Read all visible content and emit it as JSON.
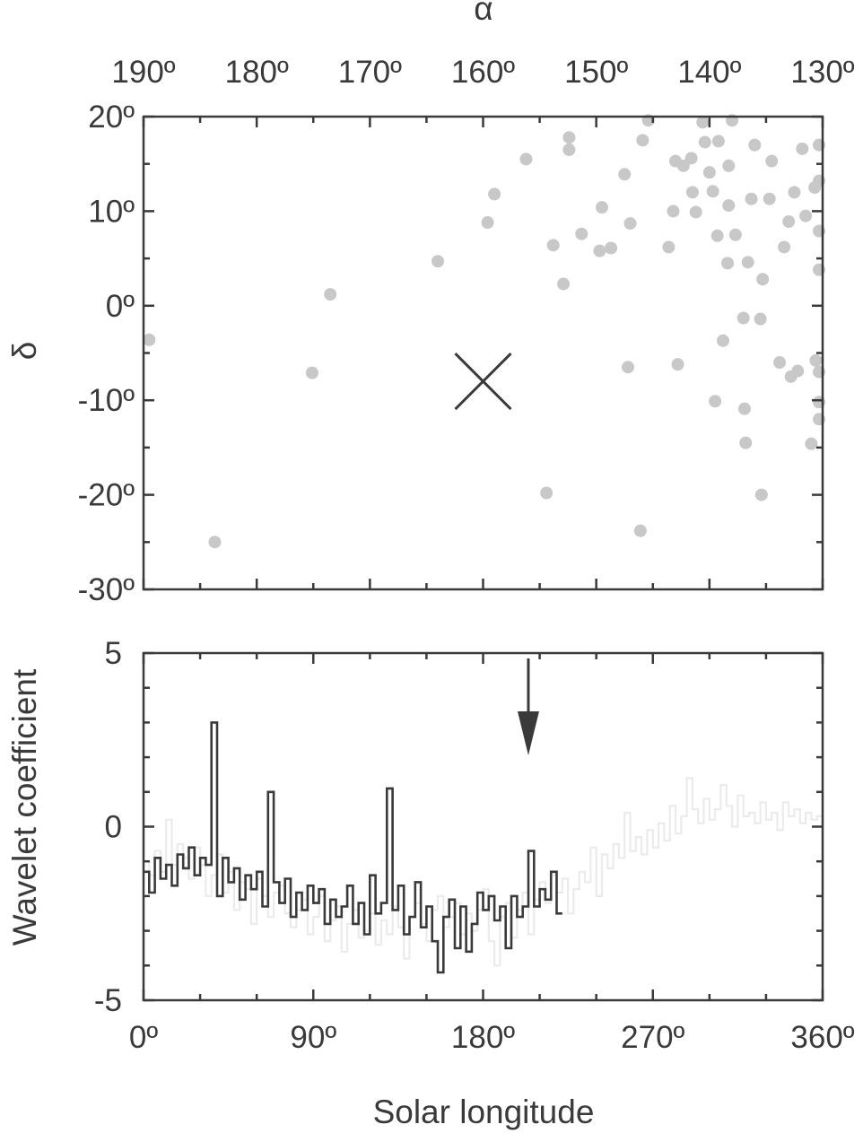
{
  "chart_data": [
    {
      "type": "scatter",
      "xlabel": "α",
      "ylabel": "δ",
      "xlim": [
        190,
        130
      ],
      "ylim": [
        -30,
        20
      ],
      "x_ticks": [
        "190º",
        "180º",
        "170º",
        "160º",
        "150º",
        "140º",
        "130º"
      ],
      "y_ticks": [
        "20º",
        "10º",
        "0º",
        "-10º",
        "-20º",
        "-30º"
      ],
      "grid": false,
      "radiant_marker": {
        "alpha": 160,
        "delta": -8
      },
      "points": [
        [
          189.5,
          -3.6
        ],
        [
          183.7,
          -25
        ],
        [
          175.1,
          -7.1
        ],
        [
          173.5,
          1.2
        ],
        [
          164,
          4.7
        ],
        [
          159.6,
          8.8
        ],
        [
          159,
          11.8
        ],
        [
          156.2,
          15.5
        ],
        [
          154.4,
          -19.8
        ],
        [
          153.8,
          6.4
        ],
        [
          152.9,
          2.3
        ],
        [
          152.4,
          16.5
        ],
        [
          152.4,
          17.8
        ],
        [
          151.3,
          7.6
        ],
        [
          149.7,
          5.8
        ],
        [
          149.5,
          10.4
        ],
        [
          148.7,
          6.1
        ],
        [
          147.5,
          13.9
        ],
        [
          147.2,
          -6.5
        ],
        [
          147,
          8.7
        ],
        [
          146.1,
          -23.8
        ],
        [
          145.9,
          17.5
        ],
        [
          145.4,
          19.6
        ],
        [
          143.6,
          6.2
        ],
        [
          143.2,
          10
        ],
        [
          143,
          15.3
        ],
        [
          142.8,
          -6.2
        ],
        [
          142.3,
          14.8
        ],
        [
          141.6,
          15.6
        ],
        [
          141.5,
          12
        ],
        [
          141.2,
          9.9
        ],
        [
          140.6,
          19.4
        ],
        [
          140.4,
          17.3
        ],
        [
          140,
          14.1
        ],
        [
          139.7,
          12.1
        ],
        [
          139.5,
          -10.1
        ],
        [
          139.3,
          7.4
        ],
        [
          139.2,
          17.4
        ],
        [
          138.8,
          -3.7
        ],
        [
          138.4,
          4.5
        ],
        [
          138.3,
          10.6
        ],
        [
          138.3,
          14.8
        ],
        [
          138,
          19.6
        ],
        [
          137.7,
          7.5
        ],
        [
          137,
          -1.3
        ],
        [
          136.9,
          -10.9
        ],
        [
          136.8,
          -14.5
        ],
        [
          136.6,
          4.6
        ],
        [
          136.3,
          11.3
        ],
        [
          136,
          17
        ],
        [
          135.5,
          -1.4
        ],
        [
          135.4,
          -20
        ],
        [
          135.3,
          2.8
        ],
        [
          134.7,
          11.3
        ],
        [
          134.5,
          15.3
        ],
        [
          133.8,
          -6
        ],
        [
          133.4,
          6.2
        ],
        [
          133,
          8.9
        ],
        [
          132.8,
          -7.5
        ],
        [
          132.5,
          12
        ],
        [
          132.2,
          -6.9
        ],
        [
          131.8,
          16.6
        ],
        [
          131.5,
          9.5
        ],
        [
          131,
          -14.6
        ],
        [
          130.7,
          12.5
        ],
        [
          130.6,
          -5.8
        ],
        [
          130.3,
          3.8
        ],
        [
          129.9,
          7.9
        ],
        [
          129.6,
          -10.2
        ],
        [
          129.4,
          -12
        ],
        [
          129,
          13.2
        ],
        [
          128.6,
          -7
        ],
        [
          128.3,
          17
        ]
      ]
    },
    {
      "type": "line",
      "xlabel": "Solar longitude",
      "ylabel": "Wavelet coefficient",
      "xlim": [
        0,
        360
      ],
      "ylim": [
        -5,
        5
      ],
      "x_ticks": [
        "0º",
        "90º",
        "180º",
        "270º",
        "360º"
      ],
      "y_ticks": [
        "5",
        "0",
        "-5"
      ],
      "grid": false,
      "arrow_at_x": 204,
      "series": [
        {
          "color": "#ebebeb",
          "x": [
            0,
            3,
            6,
            9,
            12,
            15,
            18,
            21,
            24,
            27,
            30,
            33,
            36,
            39,
            42,
            45,
            48,
            51,
            54,
            57,
            60,
            63,
            66,
            69,
            72,
            75,
            78,
            81,
            84,
            87,
            90,
            93,
            96,
            99,
            102,
            105,
            108,
            111,
            114,
            117,
            120,
            123,
            126,
            129,
            132,
            135,
            138,
            141,
            144,
            147,
            150,
            153,
            156,
            159,
            162,
            165,
            168,
            171,
            174,
            177,
            180,
            183,
            186,
            189,
            192,
            195,
            198,
            201,
            204,
            207,
            210,
            213,
            216,
            219,
            222,
            225,
            228,
            231,
            234,
            237,
            240,
            243,
            246,
            249,
            252,
            255,
            258,
            261,
            264,
            267,
            270,
            273,
            276,
            279,
            282,
            285,
            288,
            291,
            294,
            297,
            300,
            303,
            306,
            309,
            312,
            315,
            318,
            321,
            324,
            327,
            330,
            333,
            336,
            339,
            342,
            345,
            348,
            351,
            354,
            357,
            360
          ],
          "values": [
            -1,
            -1.4,
            -0.7,
            -1.3,
            0.2,
            -1.1,
            -0.5,
            -0.9,
            -1.5,
            -0.6,
            -1.1,
            -2,
            -1.4,
            -0.8,
            -1.9,
            -1.3,
            -2.4,
            -1.6,
            -1.8,
            -2.8,
            -1.5,
            -2,
            -2.6,
            -1.9,
            -1.7,
            -2.5,
            -2.9,
            -2.4,
            -2.1,
            -3.1,
            -2.6,
            -2,
            -3.3,
            -2.7,
            -2.3,
            -3.6,
            -2.8,
            -2.4,
            -3.2,
            -3,
            -2.5,
            -3.4,
            -2.7,
            -3.1,
            -2.3,
            -2.9,
            -3.8,
            -2.6,
            -2.2,
            -2.8,
            -3.3,
            -2.4,
            -2,
            -2.9,
            -2.6,
            -2.2,
            -3.1,
            -2.5,
            -3,
            -2.4,
            -1.8,
            -3.3,
            -4,
            -2.6,
            -2.2,
            -3.2,
            -2.4,
            -1.9,
            -3.1,
            -2.1,
            -1.6,
            -2.2,
            -1.4,
            -1.9,
            -1.5,
            -2.5,
            -1.8,
            -1.3,
            -1.6,
            -0.6,
            -2,
            -0.8,
            -1.2,
            -0.5,
            -0.9,
            0.4,
            -0.7,
            -0.3,
            -0.8,
            -0.1,
            -0.6,
            0.1,
            -0.4,
            0.6,
            -0.2,
            0.3,
            1.4,
            0.5,
            0.1,
            0.8,
            0.2,
            0.5,
            1.2,
            0.6,
            0,
            0.9,
            0.3,
            0.4,
            0.1,
            0.7,
            0.2,
            0.4,
            -0.1,
            0.7,
            0.3,
            0.5,
            0.1,
            0.4,
            0.2,
            0.3,
            -0.1
          ]
        },
        {
          "color": "#3a3a3a",
          "x": [
            0,
            3,
            6,
            9,
            12,
            15,
            18,
            21,
            24,
            27,
            30,
            33,
            36,
            39,
            42,
            45,
            48,
            51,
            54,
            57,
            60,
            63,
            66,
            69,
            72,
            75,
            78,
            81,
            84,
            87,
            90,
            93,
            96,
            99,
            102,
            105,
            108,
            111,
            114,
            117,
            120,
            123,
            126,
            129,
            132,
            135,
            138,
            141,
            144,
            147,
            150,
            153,
            156,
            159,
            162,
            165,
            168,
            171,
            174,
            177,
            180,
            183,
            186,
            189,
            192,
            195,
            198,
            201,
            204,
            207,
            210,
            213,
            216,
            219
          ],
          "values": [
            -1.3,
            -1.9,
            -0.9,
            -1.5,
            -1.1,
            -1.7,
            -0.8,
            -1.2,
            -0.6,
            -1.4,
            -0.9,
            -1.1,
            3,
            -2,
            -0.9,
            -1.6,
            -1.2,
            -2.1,
            -1.4,
            -1.8,
            -1.3,
            -2.3,
            1,
            -1.6,
            -2.2,
            -1.5,
            -2.6,
            -1.9,
            -2.4,
            -1.7,
            -2.2,
            -1.8,
            -2.8,
            -2.1,
            -2.6,
            -2.3,
            -1.7,
            -2.8,
            -2.2,
            -3.1,
            -1.4,
            -2.5,
            -2.2,
            1.1,
            -2.4,
            -1.7,
            -3.1,
            -2.6,
            -1.6,
            -2.9,
            -2.3,
            -3.3,
            -4.2,
            -2.6,
            -2.1,
            -3.5,
            -2.3,
            -3.6,
            -2.8,
            -1.9,
            -2.4,
            -2,
            -2.7,
            -2.3,
            -3.5,
            -2,
            -2.6,
            -2.3,
            -0.7,
            -2.3,
            -1.8,
            -2.1,
            -1.3,
            -2.5
          ]
        }
      ]
    }
  ]
}
